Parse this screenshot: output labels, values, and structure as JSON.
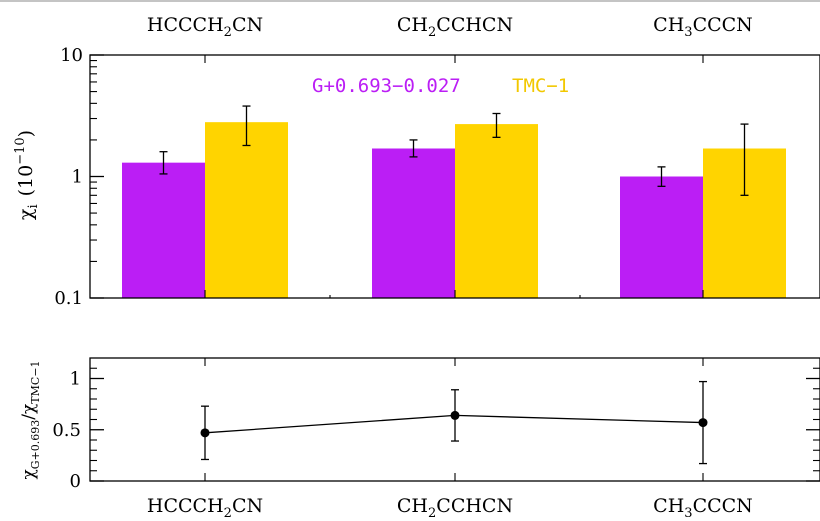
{
  "chart_data": [
    {
      "type": "bar",
      "panel": "top",
      "categories": [
        "HCCCH2CN",
        "CH2CCHCN",
        "CH3CCCN"
      ],
      "category_labels": [
        {
          "pre": "HCCCH",
          "sub": "2",
          "post": "CN"
        },
        {
          "pre": "CH",
          "sub": "2",
          "post": "CCHCN"
        },
        {
          "pre": "CH",
          "sub": "3",
          "post": "CCCN"
        }
      ],
      "series": [
        {
          "name": "G+0.693−0.027",
          "color": "#bb1ef5",
          "values": [
            1.3,
            1.7,
            1.0
          ],
          "err_low": [
            1.05,
            1.45,
            0.83
          ],
          "err_high": [
            1.6,
            2.0,
            1.2
          ]
        },
        {
          "name": "TMC−1",
          "color": "#ffd400",
          "values": [
            2.8,
            2.7,
            1.7
          ],
          "err_low": [
            1.8,
            2.1,
            0.7
          ],
          "err_high": [
            3.8,
            3.3,
            2.7
          ]
        }
      ],
      "ylabel": {
        "main": "χ",
        "sub": "i",
        "unit_pre": "(10",
        "unit_sup": "−10",
        "unit_post": ")"
      },
      "yscale": "log",
      "ylim": [
        0.1,
        10
      ],
      "yticks": [
        0.1,
        1,
        10
      ],
      "ytick_labels": [
        "0.1",
        "1",
        "10"
      ],
      "legend": "top-center"
    },
    {
      "type": "line",
      "panel": "bottom",
      "categories": [
        "HCCCH2CN",
        "CH2CCHCN",
        "CH3CCCN"
      ],
      "series": [
        {
          "name": "",
          "color": "#000000",
          "values": [
            0.47,
            0.64,
            0.57
          ],
          "err_low": [
            0.21,
            0.39,
            0.17
          ],
          "err_high": [
            0.73,
            0.89,
            0.97
          ]
        }
      ],
      "ylabel": {
        "main": "χ",
        "sub1": "G+0.693",
        "slash": "/χ",
        "sub2": "TMC−1"
      },
      "ylim": [
        0,
        1.2
      ],
      "yticks": [
        0,
        0.5,
        1
      ],
      "ytick_labels": [
        "0",
        "0.5",
        "1"
      ]
    }
  ]
}
